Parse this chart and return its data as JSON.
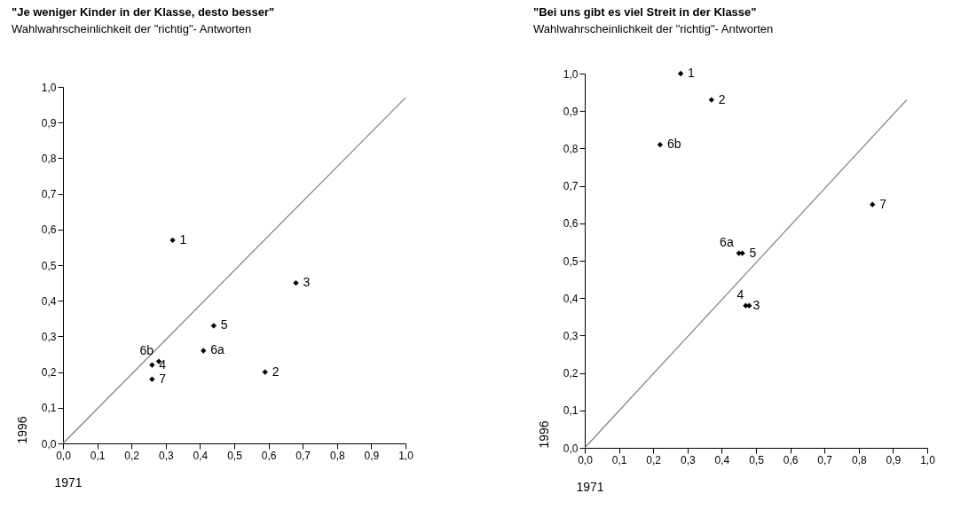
{
  "chart_data": [
    {
      "type": "scatter",
      "title": "\"Je weniger Kinder in der Klasse, desto besser\"",
      "subtitle": "Wahlwahrscheinlichkeit der \"richtig\"- Antworten",
      "xlabel": "1971",
      "ylabel": "1996",
      "marker": "diamond",
      "grid": false,
      "xlim": [
        0,
        1
      ],
      "ylim": [
        0,
        1
      ],
      "xticks": [
        {
          "value": 0,
          "label": "0,0"
        },
        {
          "value": 0.1,
          "label": "0,1"
        },
        {
          "value": 0.2,
          "label": "0,2"
        },
        {
          "value": 0.3,
          "label": "0,3"
        },
        {
          "value": 0.4,
          "label": "0,4"
        },
        {
          "value": 0.5,
          "label": "0,5"
        },
        {
          "value": 0.6,
          "label": "0,6"
        },
        {
          "value": 0.7,
          "label": "0,7"
        },
        {
          "value": 0.8,
          "label": "0,8"
        },
        {
          "value": 0.9,
          "label": "0,9"
        },
        {
          "value": 1,
          "label": "1,0"
        }
      ],
      "yticks": [
        {
          "value": 0,
          "label": "0,0"
        },
        {
          "value": 0.1,
          "label": "0,1"
        },
        {
          "value": 0.2,
          "label": "0,2"
        },
        {
          "value": 0.3,
          "label": "0,3"
        },
        {
          "value": 0.4,
          "label": "0,4"
        },
        {
          "value": 0.5,
          "label": "0,5"
        },
        {
          "value": 0.6,
          "label": "0,6"
        },
        {
          "value": 0.7,
          "label": "0,7"
        },
        {
          "value": 0.8,
          "label": "0,8"
        },
        {
          "value": 0.9,
          "label": "0,9"
        },
        {
          "value": 1,
          "label": "1,0"
        }
      ],
      "series": [
        {
          "color": "#000000",
          "x": [
            0.32,
            0.59,
            0.68,
            0.26,
            0.44,
            0.41,
            0.28,
            0.26
          ],
          "values": [
            0.57,
            0.2,
            0.45,
            0.22,
            0.33,
            0.26,
            0.23,
            0.18
          ]
        },
        {
          "type": "line",
          "marker": "none",
          "color": "#808080",
          "x": [
            0,
            1
          ],
          "values": [
            0,
            0.97
          ]
        }
      ],
      "annotations": [
        {
          "text": "1",
          "x": 0.32,
          "y": 0.57
        },
        {
          "text": "2",
          "x": 0.59,
          "y": 0.2
        },
        {
          "text": "3",
          "x": 0.68,
          "y": 0.45
        },
        {
          "text": "4",
          "x": 0.26,
          "y": 0.22
        },
        {
          "text": "5",
          "x": 0.44,
          "y": 0.33
        },
        {
          "text": "6a",
          "x": 0.41,
          "y": 0.26
        },
        {
          "text": "6b",
          "x": 0.28,
          "y": 0.23
        },
        {
          "text": "7",
          "x": 0.26,
          "y": 0.18
        }
      ]
    },
    {
      "type": "scatter",
      "title": "\"Bei uns gibt es viel Streit in der Klasse\"",
      "subtitle": "Wahlwahrscheinlichkeit der \"richtig\"- Antworten",
      "xlabel": "1971",
      "ylabel": "1996",
      "marker": "diamond",
      "grid": false,
      "xlim": [
        0,
        1
      ],
      "ylim": [
        0,
        1
      ],
      "xticks": [
        {
          "value": 0,
          "label": "0,0"
        },
        {
          "value": 0.1,
          "label": "0,1"
        },
        {
          "value": 0.2,
          "label": "0,2"
        },
        {
          "value": 0.3,
          "label": "0,3"
        },
        {
          "value": 0.4,
          "label": "0,4"
        },
        {
          "value": 0.5,
          "label": "0,5"
        },
        {
          "value": 0.6,
          "label": "0,6"
        },
        {
          "value": 0.7,
          "label": "0,7"
        },
        {
          "value": 0.8,
          "label": "0,8"
        },
        {
          "value": 0.9,
          "label": "0,9"
        },
        {
          "value": 1,
          "label": "1,0"
        }
      ],
      "yticks": [
        {
          "value": 0,
          "label": "0,0"
        },
        {
          "value": 0.1,
          "label": "0,1"
        },
        {
          "value": 0.2,
          "label": "0,2"
        },
        {
          "value": 0.3,
          "label": "0,3"
        },
        {
          "value": 0.4,
          "label": "0,4"
        },
        {
          "value": 0.5,
          "label": "0,5"
        },
        {
          "value": 0.6,
          "label": "0,6"
        },
        {
          "value": 0.7,
          "label": "0,7"
        },
        {
          "value": 0.8,
          "label": "0,8"
        },
        {
          "value": 0.9,
          "label": "0,9"
        },
        {
          "value": 1,
          "label": "1,0"
        }
      ],
      "series": [
        {
          "color": "#000000",
          "x": [
            0.28,
            0.37,
            0.47,
            0.48,
            0.46,
            0.45,
            0.22,
            0.84
          ],
          "values": [
            1.0,
            0.93,
            0.38,
            0.38,
            0.52,
            0.52,
            0.81,
            0.65
          ]
        },
        {
          "type": "line",
          "marker": "none",
          "color": "#808080",
          "x": [
            0,
            0.94
          ],
          "values": [
            0,
            0.93
          ]
        }
      ],
      "annotations": [
        {
          "text": "1",
          "x": 0.28,
          "y": 1.0
        },
        {
          "text": "2",
          "x": 0.37,
          "y": 0.93
        },
        {
          "text": "3",
          "x": 0.47,
          "y": 0.38
        },
        {
          "text": "4",
          "x": 0.48,
          "y": 0.38
        },
        {
          "text": "5",
          "x": 0.46,
          "y": 0.52
        },
        {
          "text": "6a",
          "x": 0.45,
          "y": 0.52
        },
        {
          "text": "6b",
          "x": 0.22,
          "y": 0.81
        },
        {
          "text": "7",
          "x": 0.84,
          "y": 0.65
        }
      ]
    }
  ]
}
